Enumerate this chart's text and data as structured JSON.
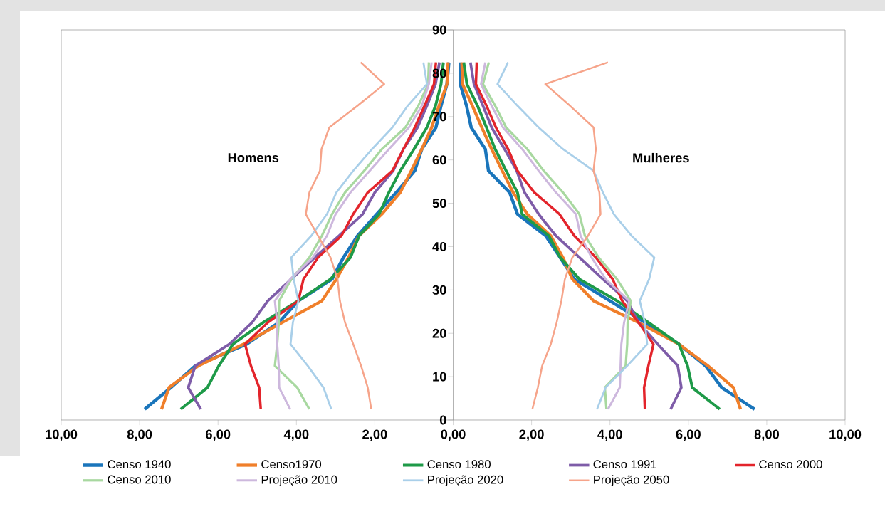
{
  "chart_data": {
    "type": "line",
    "xlim": [
      -10,
      10
    ],
    "ylim": [
      0,
      90
    ],
    "xticks": [
      {
        "value": -10,
        "label": "10,00"
      },
      {
        "value": -8,
        "label": "8,00"
      },
      {
        "value": -6,
        "label": "6,00"
      },
      {
        "value": -4,
        "label": "4,00"
      },
      {
        "value": -2,
        "label": "2,00"
      },
      {
        "value": 0,
        "label": "0,00"
      },
      {
        "value": 2,
        "label": "2,00"
      },
      {
        "value": 4,
        "label": "4,00"
      },
      {
        "value": 6,
        "label": "6,00"
      },
      {
        "value": 8,
        "label": "8,00"
      },
      {
        "value": 10,
        "label": "10,00"
      }
    ],
    "yticks": [
      0,
      10,
      20,
      30,
      40,
      50,
      60,
      70,
      80,
      90
    ],
    "legend": "bottom",
    "annotations": [
      "Homens",
      "Mulheres"
    ],
    "series": [
      {
        "name": "Censo 1940",
        "color": "#1a75bb",
        "x": [
          -7.87,
          -7.2,
          -6.58,
          -5.27,
          -4.45,
          -3.95,
          -3.09,
          -2.8,
          -2.44,
          -1.95,
          -1.45,
          -0.98,
          -0.8,
          -0.44,
          -0.31,
          -0.16,
          -0.11,
          0,
          7.69,
          6.85,
          6.44,
          5.76,
          4.9,
          4.0,
          3.09,
          2.73,
          2.36,
          1.64,
          1.44,
          0.9,
          0.82,
          0.46,
          0.34,
          0.18,
          0.18
        ],
        "values": [
          2.5,
          7.5,
          12.5,
          17.5,
          22.5,
          27.5,
          32.5,
          37.5,
          42.5,
          47.5,
          52.5,
          57.5,
          62.5,
          67.5,
          72.5,
          77.5,
          82.5,
          null,
          2.5,
          7.5,
          12.5,
          17.5,
          22.5,
          27.5,
          32.5,
          37.5,
          42.5,
          47.5,
          52.5,
          57.5,
          62.5,
          67.5,
          72.5,
          77.5,
          82.5
        ]
      },
      {
        "name": "Censo1970",
        "color": "#f07f2a",
        "x": [
          -7.44,
          -7.25,
          -6.5,
          -5.35,
          -4.36,
          -3.35,
          -2.98,
          -2.67,
          -2.4,
          -1.82,
          -1.35,
          -1.07,
          -0.8,
          -0.55,
          -0.36,
          -0.16,
          -0.13,
          0,
          7.33,
          7.15,
          6.5,
          5.76,
          4.73,
          3.58,
          3.04,
          2.8,
          2.49,
          1.89,
          1.53,
          1.25,
          0.98,
          0.73,
          0.49,
          0.24,
          0.22
        ],
        "values": [
          2.5,
          7.5,
          12.5,
          17.5,
          22.5,
          27.5,
          32.5,
          37.5,
          42.5,
          47.5,
          52.5,
          57.5,
          62.5,
          67.5,
          72.5,
          77.5,
          82.5,
          null,
          2.5,
          7.5,
          12.5,
          17.5,
          22.5,
          27.5,
          32.5,
          37.5,
          42.5,
          47.5,
          52.5,
          57.5,
          62.5,
          67.5,
          72.5,
          77.5,
          82.5
        ]
      },
      {
        "name": "Censo 1980",
        "color": "#1e9a48",
        "x": [
          -6.95,
          -6.27,
          -5.98,
          -5.62,
          -4.85,
          -3.95,
          -3.13,
          -2.62,
          -2.4,
          -1.89,
          -1.64,
          -1.35,
          -1.0,
          -0.67,
          -0.45,
          -0.31,
          -0.25,
          0,
          6.8,
          6.1,
          5.98,
          5.76,
          4.98,
          4.18,
          3.22,
          2.73,
          2.44,
          1.76,
          1.64,
          1.35,
          1.07,
          0.85,
          0.62,
          0.35,
          0.27
        ],
        "values": [
          2.5,
          7.5,
          12.5,
          17.5,
          22.5,
          27.5,
          32.5,
          37.5,
          42.5,
          47.5,
          52.5,
          57.5,
          62.5,
          67.5,
          72.5,
          77.5,
          82.5,
          null,
          2.5,
          7.5,
          12.5,
          17.5,
          22.5,
          27.5,
          32.5,
          37.5,
          42.5,
          47.5,
          52.5,
          57.5,
          62.5,
          67.5,
          72.5,
          77.5,
          82.5
        ]
      },
      {
        "name": "Censo 1991",
        "color": "#7e5ca8",
        "x": [
          -6.44,
          -6.76,
          -6.58,
          -5.71,
          -5.13,
          -4.73,
          -4.13,
          -3.53,
          -2.91,
          -2.31,
          -2.0,
          -1.53,
          -1.27,
          -0.91,
          -0.67,
          -0.45,
          -0.35,
          0,
          5.55,
          5.82,
          5.73,
          5.22,
          4.73,
          4.44,
          3.82,
          3.22,
          2.62,
          2.18,
          1.82,
          1.62,
          1.31,
          0.98,
          0.76,
          0.53,
          0.44
        ],
        "values": [
          2.5,
          7.5,
          12.5,
          17.5,
          22.5,
          27.5,
          32.5,
          37.5,
          42.5,
          47.5,
          52.5,
          57.5,
          62.5,
          67.5,
          72.5,
          77.5,
          82.5,
          null,
          2.5,
          7.5,
          12.5,
          17.5,
          22.5,
          27.5,
          32.5,
          37.5,
          42.5,
          47.5,
          52.5,
          57.5,
          62.5,
          67.5,
          72.5,
          77.5,
          82.5
        ]
      },
      {
        "name": "Censo 2000",
        "color": "#e3242b",
        "x": [
          -4.91,
          -4.95,
          -5.16,
          -5.31,
          -4.73,
          -3.95,
          -3.82,
          -3.45,
          -2.85,
          -2.55,
          -2.18,
          -1.55,
          -1.27,
          -0.98,
          -0.73,
          -0.49,
          -0.44,
          0,
          4.89,
          4.87,
          4.98,
          5.11,
          4.73,
          4.31,
          4.07,
          3.64,
          3.09,
          2.71,
          2.07,
          1.64,
          1.4,
          1.09,
          0.85,
          0.58,
          0.6
        ],
        "values": [
          2.5,
          7.5,
          12.5,
          17.5,
          22.5,
          27.5,
          32.5,
          37.5,
          42.5,
          47.5,
          52.5,
          57.5,
          62.5,
          67.5,
          72.5,
          77.5,
          82.5,
          null,
          2.5,
          7.5,
          12.5,
          17.5,
          22.5,
          27.5,
          32.5,
          37.5,
          42.5,
          47.5,
          52.5,
          57.5,
          62.5,
          67.5,
          72.5,
          77.5,
          82.5
        ]
      },
      {
        "name": "Censo 2010",
        "color": "#a8d8a0",
        "x": [
          -3.67,
          -3.98,
          -4.55,
          -4.49,
          -4.45,
          -4.44,
          -4.13,
          -3.67,
          -3.35,
          -3.09,
          -2.76,
          -2.27,
          -1.82,
          -1.22,
          -0.89,
          -0.64,
          -0.62,
          0,
          3.91,
          3.87,
          4.4,
          4.44,
          4.45,
          4.53,
          4.18,
          3.71,
          3.36,
          3.22,
          2.8,
          2.31,
          1.89,
          1.35,
          1.07,
          0.76,
          0.91
        ],
        "values": [
          2.5,
          7.5,
          12.5,
          17.5,
          22.5,
          27.5,
          32.5,
          37.5,
          42.5,
          47.5,
          52.5,
          57.5,
          62.5,
          67.5,
          72.5,
          77.5,
          82.5,
          null,
          2.5,
          7.5,
          12.5,
          17.5,
          22.5,
          27.5,
          32.5,
          37.5,
          42.5,
          47.5,
          52.5,
          57.5,
          62.5,
          67.5,
          72.5,
          77.5,
          82.5
        ]
      },
      {
        "name": "Projeção 2010",
        "color": "#cdb8dd",
        "x": [
          -4.16,
          -4.44,
          -4.45,
          -4.49,
          -4.49,
          -4.55,
          -4.16,
          -3.58,
          -3.22,
          -3.0,
          -2.62,
          -2.13,
          -1.64,
          -1.13,
          -0.8,
          -0.62,
          -0.55,
          0,
          3.95,
          4.25,
          4.27,
          4.29,
          4.36,
          4.49,
          3.89,
          3.53,
          3.25,
          3.13,
          2.62,
          2.18,
          1.76,
          1.27,
          0.98,
          0.71,
          0.82
        ],
        "values": [
          2.5,
          7.5,
          12.5,
          17.5,
          22.5,
          27.5,
          32.5,
          37.5,
          42.5,
          47.5,
          52.5,
          57.5,
          62.5,
          67.5,
          72.5,
          77.5,
          82.5,
          null,
          2.5,
          7.5,
          12.5,
          17.5,
          22.5,
          27.5,
          32.5,
          37.5,
          42.5,
          47.5,
          52.5,
          57.5,
          62.5,
          67.5,
          72.5,
          77.5,
          82.5
        ]
      },
      {
        "name": "Projeção 2020",
        "color": "#a9cfe9",
        "x": [
          -3.11,
          -3.31,
          -3.71,
          -4.15,
          -4.09,
          -3.95,
          -4.07,
          -4.13,
          -3.62,
          -3.22,
          -2.98,
          -2.55,
          -2.07,
          -1.55,
          -1.16,
          -0.67,
          -0.76,
          0,
          3.67,
          3.89,
          4.44,
          4.95,
          4.89,
          4.76,
          5.0,
          5.13,
          4.55,
          4.1,
          3.82,
          3.58,
          2.8,
          2.18,
          1.64,
          1.13,
          1.4
        ],
        "values": [
          2.5,
          7.5,
          12.5,
          17.5,
          22.5,
          27.5,
          32.5,
          37.5,
          42.5,
          47.5,
          52.5,
          57.5,
          62.5,
          67.5,
          72.5,
          77.5,
          82.5,
          null,
          2.5,
          7.5,
          12.5,
          17.5,
          22.5,
          27.5,
          32.5,
          37.5,
          42.5,
          47.5,
          52.5,
          57.5,
          62.5,
          67.5,
          72.5,
          77.5,
          82.5
        ]
      },
      {
        "name": "Projeção 2050",
        "color": "#f6a48a",
        "x": [
          -2.09,
          -2.18,
          -2.35,
          -2.55,
          -2.76,
          -2.89,
          -2.95,
          -3.13,
          -3.45,
          -3.76,
          -3.67,
          -3.4,
          -3.36,
          -3.16,
          -2.44,
          -1.76,
          -2.36,
          0,
          2.02,
          2.16,
          2.27,
          2.49,
          2.64,
          2.76,
          2.85,
          3.04,
          3.44,
          3.76,
          3.73,
          3.58,
          3.64,
          3.58,
          2.98,
          2.35,
          3.95
        ],
        "values": [
          2.5,
          7.5,
          12.5,
          17.5,
          22.5,
          27.5,
          32.5,
          37.5,
          42.5,
          47.5,
          52.5,
          57.5,
          62.5,
          67.5,
          72.5,
          77.5,
          82.5,
          null,
          2.5,
          7.5,
          12.5,
          17.5,
          22.5,
          27.5,
          32.5,
          37.5,
          42.5,
          47.5,
          52.5,
          57.5,
          62.5,
          67.5,
          72.5,
          77.5,
          82.5
        ]
      }
    ]
  }
}
